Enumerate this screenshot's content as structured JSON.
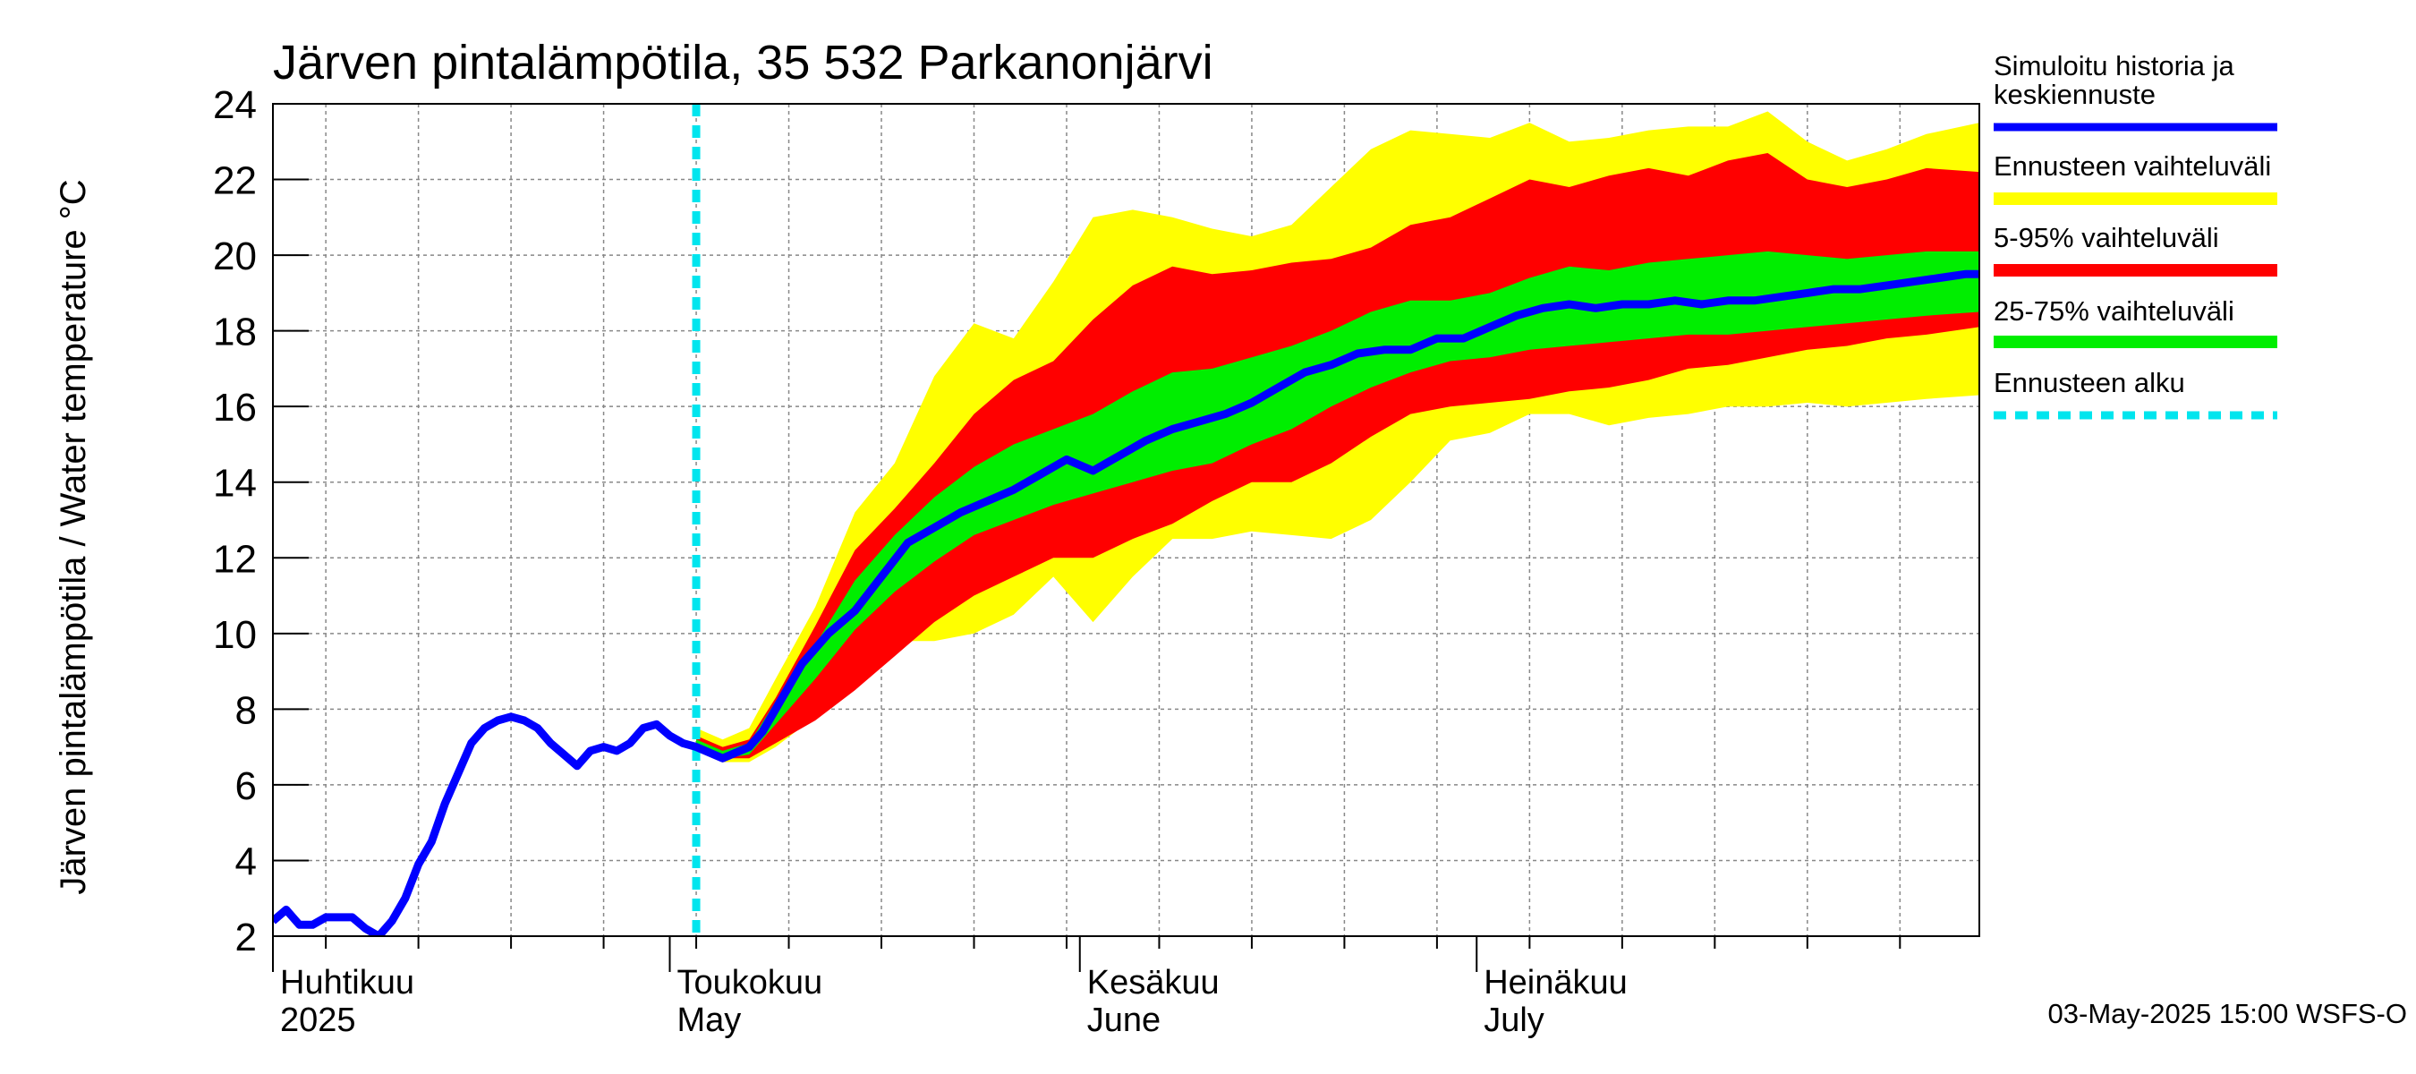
{
  "chart_data": {
    "type": "area",
    "title": "Järven pintalämpötila, 35 532 Parkanonjärvi",
    "ylabel": "Järven pintalämpötila / Water temperature °C",
    "xlabel": "",
    "x_range": [
      "2025-04-01",
      "2025-08-08"
    ],
    "ylim": [
      2,
      24
    ],
    "y_ticks": [
      2,
      4,
      6,
      8,
      10,
      12,
      14,
      16,
      18,
      20,
      22,
      24
    ],
    "grid": true,
    "months": [
      {
        "date": "2025-04-01",
        "label_fi": "Huhtikuu",
        "label_en": "2025"
      },
      {
        "date": "2025-05-01",
        "label_fi": "Toukokuu",
        "label_en": "May"
      },
      {
        "date": "2025-06-01",
        "label_fi": "Kesäkuu",
        "label_en": "June"
      },
      {
        "date": "2025-07-01",
        "label_fi": "Heinäkuu",
        "label_en": "July"
      }
    ],
    "forecast_start": "2025-05-03",
    "timestamp": "03-May-2025 15:00 WSFS-O",
    "legend_placement": "right",
    "legend": [
      {
        "label": "Simuloitu historia ja keskiennuste",
        "color": "#0000ff",
        "style": "line"
      },
      {
        "label": "Ennusteen vaihteluväli",
        "color": "#ffff00",
        "style": "band"
      },
      {
        "label": "5-95% vaihteluväli",
        "color": "#ff0000",
        "style": "band"
      },
      {
        "label": "25-75% vaihteluväli",
        "color": "#00ee00",
        "style": "band"
      },
      {
        "label": "Ennusteen alku",
        "color": "#00e5ee",
        "style": "dashed"
      }
    ],
    "series": [
      {
        "name": "Simuloitu historia ja keskiennuste",
        "x": [
          "2025-04-01",
          "2025-04-02",
          "2025-04-03",
          "2025-04-04",
          "2025-04-05",
          "2025-04-06",
          "2025-04-07",
          "2025-04-08",
          "2025-04-09",
          "2025-04-10",
          "2025-04-11",
          "2025-04-12",
          "2025-04-13",
          "2025-04-14",
          "2025-04-15",
          "2025-04-16",
          "2025-04-17",
          "2025-04-18",
          "2025-04-19",
          "2025-04-20",
          "2025-04-21",
          "2025-04-22",
          "2025-04-23",
          "2025-04-24",
          "2025-04-25",
          "2025-04-26",
          "2025-04-27",
          "2025-04-28",
          "2025-04-29",
          "2025-04-30",
          "2025-05-01",
          "2025-05-02",
          "2025-05-03",
          "2025-05-05",
          "2025-05-07",
          "2025-05-08",
          "2025-05-09",
          "2025-05-11",
          "2025-05-13",
          "2025-05-15",
          "2025-05-17",
          "2025-05-19",
          "2025-05-21",
          "2025-05-23",
          "2025-05-25",
          "2025-05-27",
          "2025-05-29",
          "2025-05-31",
          "2025-06-02",
          "2025-06-04",
          "2025-06-06",
          "2025-06-08",
          "2025-06-10",
          "2025-06-12",
          "2025-06-14",
          "2025-06-16",
          "2025-06-18",
          "2025-06-20",
          "2025-06-22",
          "2025-06-24",
          "2025-06-26",
          "2025-06-28",
          "2025-06-30",
          "2025-07-02",
          "2025-07-04",
          "2025-07-06",
          "2025-07-08",
          "2025-07-10",
          "2025-07-12",
          "2025-07-14",
          "2025-07-16",
          "2025-07-18",
          "2025-07-20",
          "2025-07-22",
          "2025-07-24",
          "2025-07-26",
          "2025-07-28",
          "2025-07-30",
          "2025-08-01",
          "2025-08-03",
          "2025-08-05",
          "2025-08-07",
          "2025-08-08"
        ],
        "y": [
          2.4,
          2.7,
          2.3,
          2.3,
          2.5,
          2.5,
          2.5,
          2.2,
          2.0,
          2.4,
          3.0,
          3.9,
          4.5,
          5.5,
          6.3,
          7.1,
          7.5,
          7.7,
          7.8,
          7.7,
          7.5,
          7.1,
          6.8,
          6.5,
          6.9,
          7.0,
          6.9,
          7.1,
          7.5,
          7.6,
          7.3,
          7.1,
          7.0,
          6.7,
          7.0,
          7.4,
          8.0,
          9.2,
          10.0,
          10.6,
          11.5,
          12.4,
          12.8,
          13.2,
          13.5,
          13.8,
          14.2,
          14.6,
          14.3,
          14.7,
          15.1,
          15.4,
          15.6,
          15.8,
          16.1,
          16.5,
          16.9,
          17.1,
          17.4,
          17.5,
          17.5,
          17.8,
          17.8,
          18.1,
          18.4,
          18.6,
          18.7,
          18.6,
          18.7,
          18.7,
          18.8,
          18.7,
          18.8,
          18.8,
          18.9,
          19.0,
          19.1,
          19.1,
          19.2,
          19.3,
          19.4,
          19.5,
          19.5
        ]
      },
      {
        "name": "Ennusteen vaihteluväli",
        "x": [
          "2025-05-03",
          "2025-05-05",
          "2025-05-07",
          "2025-05-09",
          "2025-05-12",
          "2025-05-15",
          "2025-05-18",
          "2025-05-21",
          "2025-05-24",
          "2025-05-27",
          "2025-05-30",
          "2025-06-02",
          "2025-06-05",
          "2025-06-08",
          "2025-06-11",
          "2025-06-14",
          "2025-06-17",
          "2025-06-20",
          "2025-06-23",
          "2025-06-26",
          "2025-06-29",
          "2025-07-02",
          "2025-07-05",
          "2025-07-08",
          "2025-07-11",
          "2025-07-14",
          "2025-07-17",
          "2025-07-20",
          "2025-07-23",
          "2025-07-26",
          "2025-07-29",
          "2025-08-01",
          "2025-08-04",
          "2025-08-08"
        ],
        "lower": [
          7.1,
          6.6,
          6.6,
          7.0,
          7.8,
          8.9,
          9.8,
          9.8,
          10.0,
          10.5,
          11.5,
          10.3,
          11.5,
          12.5,
          12.5,
          12.7,
          12.6,
          12.5,
          13.0,
          14.0,
          15.1,
          15.3,
          15.8,
          15.8,
          15.5,
          15.7,
          15.8,
          16.0,
          16.0,
          16.1,
          16.0,
          16.1,
          16.2,
          16.3
        ],
        "upper": [
          7.5,
          7.2,
          7.5,
          8.8,
          10.7,
          13.2,
          14.5,
          16.8,
          18.2,
          17.8,
          19.3,
          21.0,
          21.2,
          21.0,
          20.7,
          20.5,
          20.8,
          21.8,
          22.8,
          23.3,
          23.2,
          23.1,
          23.5,
          23.0,
          23.1,
          23.3,
          23.4,
          23.4,
          23.8,
          23.0,
          22.5,
          22.8,
          23.2,
          23.5
        ]
      },
      {
        "name": "5-95% vaihteluväli",
        "x": [
          "2025-05-03",
          "2025-05-05",
          "2025-05-07",
          "2025-05-09",
          "2025-05-12",
          "2025-05-15",
          "2025-05-18",
          "2025-05-21",
          "2025-05-24",
          "2025-05-27",
          "2025-05-30",
          "2025-06-02",
          "2025-06-05",
          "2025-06-08",
          "2025-06-11",
          "2025-06-14",
          "2025-06-17",
          "2025-06-20",
          "2025-06-23",
          "2025-06-26",
          "2025-06-29",
          "2025-07-02",
          "2025-07-05",
          "2025-07-08",
          "2025-07-11",
          "2025-07-14",
          "2025-07-17",
          "2025-07-20",
          "2025-07-23",
          "2025-07-26",
          "2025-07-29",
          "2025-08-01",
          "2025-08-04",
          "2025-08-08"
        ],
        "lower": [
          7.1,
          6.7,
          6.7,
          7.1,
          7.7,
          8.5,
          9.4,
          10.3,
          11.0,
          11.5,
          12.0,
          12.0,
          12.5,
          12.9,
          13.5,
          14.0,
          14.0,
          14.5,
          15.2,
          15.8,
          16.0,
          16.1,
          16.2,
          16.4,
          16.5,
          16.7,
          17.0,
          17.1,
          17.3,
          17.5,
          17.6,
          17.8,
          17.9,
          18.1
        ],
        "upper": [
          7.3,
          7.0,
          7.2,
          8.3,
          10.2,
          12.2,
          13.3,
          14.5,
          15.8,
          16.7,
          17.2,
          18.3,
          19.2,
          19.7,
          19.5,
          19.6,
          19.8,
          19.9,
          20.2,
          20.8,
          21.0,
          21.5,
          22.0,
          21.8,
          22.1,
          22.3,
          22.1,
          22.5,
          22.7,
          22.0,
          21.8,
          22.0,
          22.3,
          22.2
        ]
      },
      {
        "name": "25-75% vaihteluväli",
        "x": [
          "2025-05-03",
          "2025-05-05",
          "2025-05-07",
          "2025-05-09",
          "2025-05-12",
          "2025-05-15",
          "2025-05-18",
          "2025-05-21",
          "2025-05-24",
          "2025-05-27",
          "2025-05-30",
          "2025-06-02",
          "2025-06-05",
          "2025-06-08",
          "2025-06-11",
          "2025-06-14",
          "2025-06-17",
          "2025-06-20",
          "2025-06-23",
          "2025-06-26",
          "2025-06-29",
          "2025-07-02",
          "2025-07-05",
          "2025-07-08",
          "2025-07-11",
          "2025-07-14",
          "2025-07-17",
          "2025-07-20",
          "2025-07-23",
          "2025-07-26",
          "2025-07-29",
          "2025-08-01",
          "2025-08-04",
          "2025-08-08"
        ],
        "lower": [
          7.1,
          6.7,
          6.8,
          7.6,
          8.8,
          10.1,
          11.1,
          11.9,
          12.6,
          13.0,
          13.4,
          13.7,
          14.0,
          14.3,
          14.5,
          15.0,
          15.4,
          16.0,
          16.5,
          16.9,
          17.2,
          17.3,
          17.5,
          17.6,
          17.7,
          17.8,
          17.9,
          17.9,
          18.0,
          18.1,
          18.2,
          18.3,
          18.4,
          18.5
        ],
        "upper": [
          7.2,
          6.9,
          7.1,
          8.2,
          9.7,
          11.4,
          12.6,
          13.6,
          14.4,
          15.0,
          15.4,
          15.8,
          16.4,
          16.9,
          17.0,
          17.3,
          17.6,
          18.0,
          18.5,
          18.8,
          18.8,
          19.0,
          19.4,
          19.7,
          19.6,
          19.8,
          19.9,
          20.0,
          20.1,
          20.0,
          19.9,
          20.0,
          20.1,
          20.1
        ]
      }
    ]
  }
}
